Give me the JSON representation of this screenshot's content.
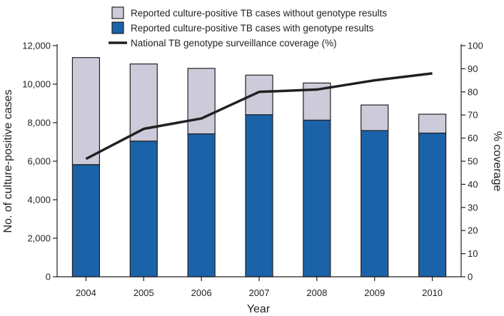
{
  "chart_data": {
    "type": "bar",
    "stacked": true,
    "categories": [
      "2004",
      "2005",
      "2006",
      "2007",
      "2008",
      "2009",
      "2010"
    ],
    "series": [
      {
        "name": "Reported culture-positive TB cases with genotype results",
        "axis": "left",
        "color": "#1a63a8",
        "values": [
          5820,
          7040,
          7420,
          8410,
          8130,
          7590,
          7460
        ]
      },
      {
        "name": "Reported culture-positive TB cases without genotype results",
        "axis": "left",
        "color": "#cdcbd9",
        "values": [
          5560,
          4010,
          3400,
          2060,
          1930,
          1330,
          980
        ]
      },
      {
        "name": "National TB genotype surveillance coverage (%)",
        "axis": "right",
        "kind": "line",
        "color": "#231f20",
        "values": [
          51,
          64,
          68.5,
          80,
          81,
          85,
          88
        ]
      }
    ],
    "xlabel": "Year",
    "ylabel": "No. of culture-positive cases",
    "ylabel_right": "% coverage",
    "ylim": [
      0,
      12000
    ],
    "yticks": [
      "0",
      "2,000",
      "4,000",
      "6,000",
      "8,000",
      "10,000",
      "12,000"
    ],
    "ylim_right": [
      0,
      100
    ],
    "yticks_right": [
      "0",
      "10",
      "20",
      "30",
      "40",
      "50",
      "60",
      "70",
      "80",
      "90",
      "100"
    ],
    "legend_position": "top-center",
    "legend_order": [
      1,
      0,
      2
    ],
    "grid": false
  }
}
